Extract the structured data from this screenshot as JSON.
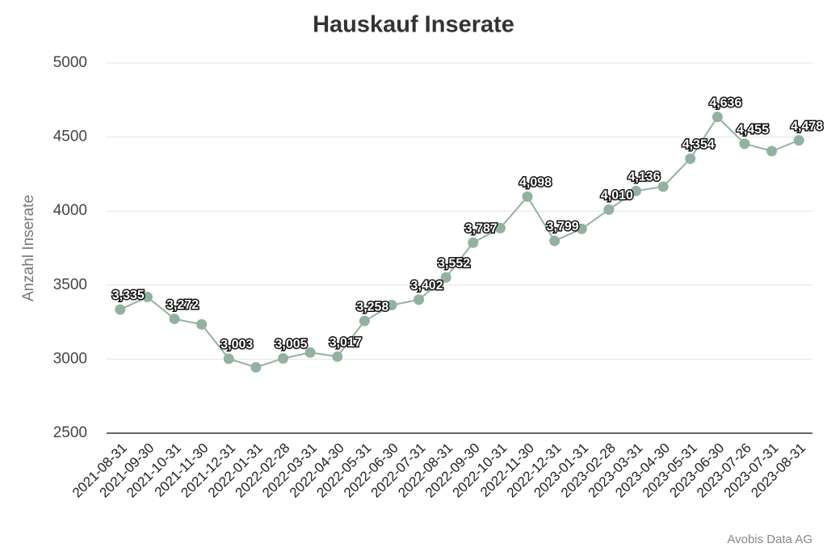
{
  "chart_data": {
    "type": "line",
    "title": "Hauskauf Inserate",
    "y_label": "Anzahl Inserate",
    "source": "Avobis Data AG",
    "categories": [
      "2021-08-31",
      "2021-09-30",
      "2021-10-31",
      "2021-11-30",
      "2021-12-31",
      "2022-01-31",
      "2022-02-28",
      "2022-03-31",
      "2022-04-30",
      "2022-05-31",
      "2022-06-30",
      "2022-07-31",
      "2022-08-31",
      "2022-09-30",
      "2022-10-31",
      "2022-11-30",
      "2022-12-31",
      "2023-01-31",
      "2023-02-28",
      "2023-03-31",
      "2023-04-30",
      "2023-05-31",
      "2023-06-30",
      "2023-07-26",
      "2023-07-31",
      "2023-08-31"
    ],
    "values": [
      3335,
      3420,
      3272,
      3235,
      3003,
      2945,
      3005,
      3045,
      3017,
      3258,
      3365,
      3402,
      3552,
      3787,
      3885,
      4098,
      3799,
      3880,
      4010,
      4136,
      4165,
      4354,
      4636,
      4455,
      4405,
      4478
    ],
    "value_labels": [
      "3,335",
      null,
      "3,272",
      null,
      "3,003",
      null,
      "3,005",
      null,
      "3,017",
      "3,258",
      null,
      "3,402",
      "3,552",
      "3,787",
      null,
      "4,098",
      "3,799",
      null,
      "4,010",
      "4,136",
      null,
      "4,354",
      "4,636",
      "4,455",
      null,
      "4,478"
    ],
    "color": "#93b19f",
    "ylim": [
      2500,
      5000
    ],
    "yticks": [
      2500,
      3000,
      3500,
      4000,
      4500,
      5000
    ],
    "grid": true
  }
}
